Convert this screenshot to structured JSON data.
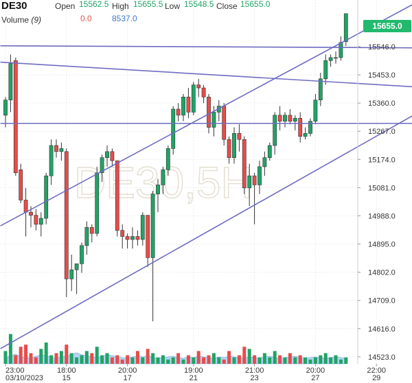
{
  "header": {
    "symbol": "DE30",
    "open_label": "Open",
    "open_value": "15562.5",
    "high_label": "High",
    "high_value": "15655.5",
    "low_label": "Low",
    "low_value": "15548.5",
    "close_label": "Close",
    "close_value": "15655.0",
    "volume_label": "Volume",
    "volume_period": "(9)",
    "volume_value1": "0.0",
    "volume_value2": "8537.0"
  },
  "watermark": "DE30,5H",
  "last_price": "15655.0",
  "colors": {
    "up": "#21a366",
    "down": "#e74c4c",
    "trendline": "#6e6cc2",
    "last_price_bg": "#21b96e",
    "volume_area": "#9ec6ee"
  },
  "chart_data": {
    "type": "candlestick",
    "ylim": [
      14500,
      15700
    ],
    "y_ticks": [
      "15546.0",
      "15453.0",
      "15360.0",
      "15267.0",
      "15174.0",
      "15081.0",
      "14988.0",
      "14895.0",
      "14802.0",
      "14709.0",
      "14616.0",
      "14523.0"
    ],
    "x_ticks": [
      {
        "time": "23:00",
        "date": "03/10/2023",
        "index": 0
      },
      {
        "time": "18:00",
        "date": "15",
        "index": 12
      },
      {
        "time": "20:00",
        "date": "17",
        "index": 24
      },
      {
        "time": "19:00",
        "date": "21",
        "index": 37
      },
      {
        "time": "21:00",
        "date": "23",
        "index": 49
      },
      {
        "time": "20:00",
        "date": "27",
        "index": 61
      },
      {
        "time": "22:00",
        "date": "29",
        "index": 73
      }
    ],
    "candles": [
      [
        15320,
        15380,
        15280,
        15370
      ],
      [
        15370,
        15520,
        15330,
        15490
      ],
      [
        15500,
        15510,
        15120,
        15130
      ],
      [
        15140,
        15160,
        15030,
        15040
      ],
      [
        15040,
        15080,
        14920,
        15000
      ],
      [
        15000,
        15020,
        14950,
        14990
      ],
      [
        14990,
        15010,
        14940,
        14960
      ],
      [
        14960,
        15000,
        14920,
        14980
      ],
      [
        14980,
        15130,
        14960,
        15120
      ],
      [
        15120,
        15240,
        15090,
        15220
      ],
      [
        15220,
        15240,
        15180,
        15200
      ],
      [
        15200,
        15230,
        15170,
        15210
      ],
      [
        15200,
        15210,
        14720,
        14780
      ],
      [
        14780,
        14860,
        14740,
        14810
      ],
      [
        14810,
        14830,
        14730,
        14830
      ],
      [
        14830,
        14900,
        14800,
        14890
      ],
      [
        14890,
        14970,
        14860,
        14950
      ],
      [
        14950,
        14960,
        14900,
        14930
      ],
      [
        14930,
        15150,
        14920,
        15130
      ],
      [
        15130,
        15190,
        15100,
        15180
      ],
      [
        15180,
        15220,
        15150,
        15200
      ],
      [
        15200,
        15210,
        15150,
        15170
      ],
      [
        15170,
        15170,
        14920,
        14940
      ],
      [
        14940,
        14960,
        14880,
        14920
      ],
      [
        14920,
        14930,
        14880,
        14910
      ],
      [
        14910,
        14950,
        14880,
        14920
      ],
      [
        14920,
        14940,
        14890,
        14910
      ],
      [
        14910,
        15000,
        14890,
        14990
      ],
      [
        14990,
        14990,
        14820,
        14850
      ],
      [
        14850,
        15070,
        14640,
        15060
      ],
      [
        15060,
        15110,
        15000,
        15090
      ],
      [
        15090,
        15150,
        15060,
        15140
      ],
      [
        15140,
        15220,
        15120,
        15210
      ],
      [
        15210,
        15350,
        15190,
        15340
      ],
      [
        15340,
        15360,
        15300,
        15320
      ],
      [
        15320,
        15390,
        15300,
        15380
      ],
      [
        15380,
        15410,
        15310,
        15330
      ],
      [
        15330,
        15430,
        15320,
        15420
      ],
      [
        15420,
        15440,
        15380,
        15410
      ],
      [
        15410,
        15420,
        15360,
        15380
      ],
      [
        15380,
        15390,
        15260,
        15280
      ],
      [
        15280,
        15350,
        15250,
        15330
      ],
      [
        15330,
        15370,
        15300,
        15350
      ],
      [
        15350,
        15360,
        15220,
        15240
      ],
      [
        15240,
        15250,
        15160,
        15180
      ],
      [
        15180,
        15280,
        15160,
        15260
      ],
      [
        15260,
        15290,
        15200,
        15240
      ],
      [
        15240,
        15250,
        15060,
        15080
      ],
      [
        15080,
        15160,
        15020,
        15120
      ],
      [
        15120,
        15130,
        14960,
        15090
      ],
      [
        15090,
        15170,
        15060,
        15150
      ],
      [
        15150,
        15200,
        15120,
        15180
      ],
      [
        15180,
        15230,
        15170,
        15220
      ],
      [
        15220,
        15330,
        15190,
        15320
      ],
      [
        15320,
        15350,
        15270,
        15300
      ],
      [
        15300,
        15330,
        15280,
        15320
      ],
      [
        15320,
        15340,
        15290,
        15300
      ],
      [
        15300,
        15320,
        15270,
        15310
      ],
      [
        15310,
        15330,
        15230,
        15250
      ],
      [
        15250,
        15280,
        15240,
        15260
      ],
      [
        15260,
        15310,
        15250,
        15300
      ],
      [
        15300,
        15390,
        15290,
        15370
      ],
      [
        15370,
        15460,
        15350,
        15440
      ],
      [
        15440,
        15520,
        15420,
        15500
      ],
      [
        15500,
        15520,
        15480,
        15510
      ],
      [
        15510,
        15530,
        15490,
        15510
      ],
      [
        15510,
        15580,
        15500,
        15560
      ],
      [
        15562.5,
        15655.5,
        15548.5,
        15655
      ]
    ],
    "volume": [
      30,
      70,
      20,
      40,
      45,
      25,
      15,
      35,
      50,
      20,
      25,
      30,
      45,
      25,
      15,
      20,
      30,
      25,
      40,
      20,
      25,
      15,
      20,
      10,
      20,
      15,
      30,
      15,
      35,
      25,
      15,
      20,
      10,
      15,
      25,
      10,
      20,
      15,
      30,
      15,
      20,
      25,
      15,
      10,
      30,
      15,
      20,
      40,
      35,
      20,
      15,
      25,
      15,
      30,
      20,
      15,
      25,
      15,
      20,
      15,
      10,
      15,
      20,
      25,
      15,
      20,
      10,
      15
    ],
    "volume_area": [
      8,
      12,
      14,
      10,
      9,
      8,
      11,
      13,
      12,
      9,
      8,
      10,
      11,
      14,
      16,
      13,
      12,
      10,
      9,
      11,
      13,
      12,
      10,
      9,
      8,
      10,
      11,
      10,
      12,
      9,
      8,
      9,
      10,
      11,
      9,
      8,
      10,
      9,
      11,
      10,
      9,
      8,
      10,
      9,
      11,
      10,
      9,
      8,
      10,
      9,
      8,
      10,
      11,
      9,
      8,
      9,
      10,
      11,
      9,
      8,
      9,
      10,
      9,
      8,
      9,
      10,
      9,
      8
    ],
    "trendlines": [
      {
        "from": [
          -1,
          15495
        ],
        "to": [
          84,
          15410
        ]
      },
      {
        "from": [
          -1,
          15549
        ],
        "to": [
          84,
          15542
        ]
      },
      {
        "from": [
          -1,
          15293
        ],
        "to": [
          84,
          15293
        ]
      },
      {
        "from": [
          -1,
          14955
        ],
        "to": [
          84,
          15720
        ]
      },
      {
        "from": [
          -1,
          14550
        ],
        "to": [
          84,
          15355
        ]
      }
    ]
  }
}
